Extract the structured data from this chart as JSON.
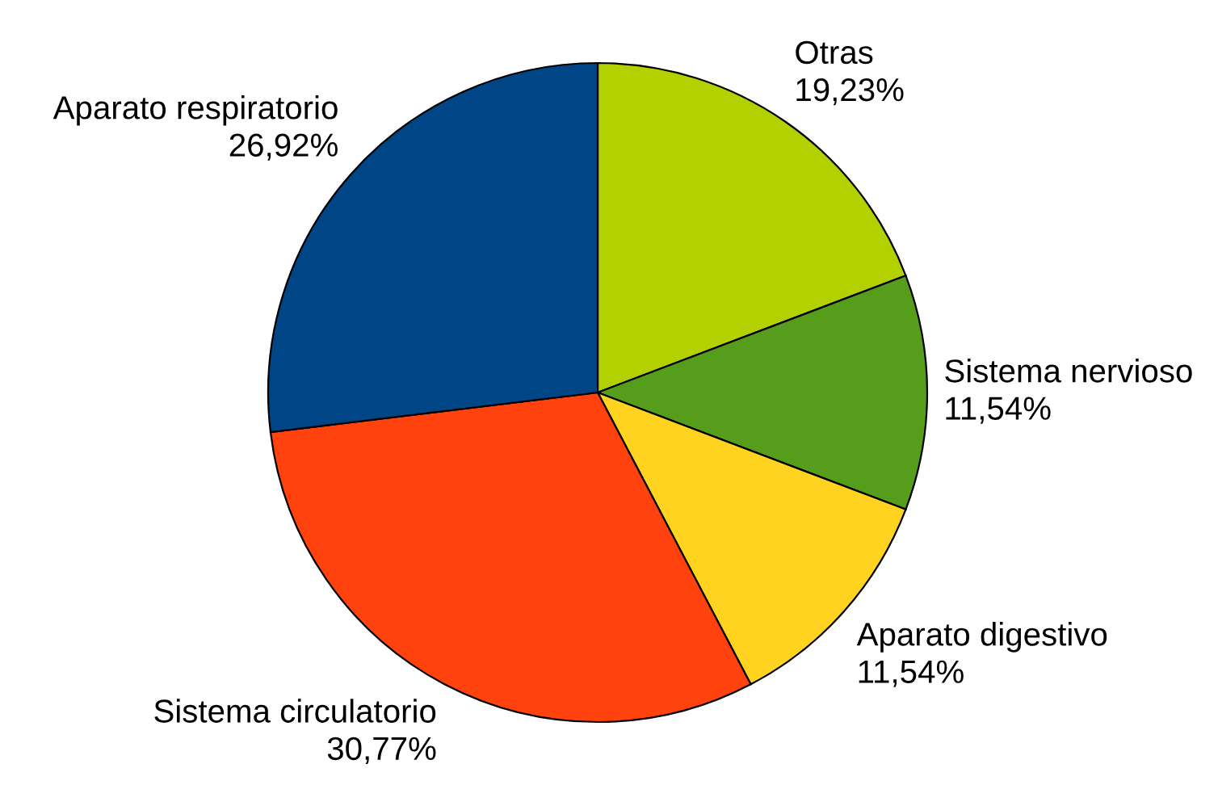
{
  "chart_data": {
    "type": "pie",
    "categories": [
      "Otras",
      "Sistema nervioso",
      "Aparato digestivo",
      "Sistema circulatorio",
      "Aparato respiratorio"
    ],
    "values": [
      19.23,
      11.54,
      11.54,
      30.77,
      26.92
    ],
    "value_labels": [
      "19,23%",
      "11,54%",
      "11,54%",
      "30,77%",
      "26,92%"
    ],
    "colors": [
      "#b3d100",
      "#579d1c",
      "#ffd320",
      "#ff420e",
      "#004586"
    ],
    "legend": false
  }
}
